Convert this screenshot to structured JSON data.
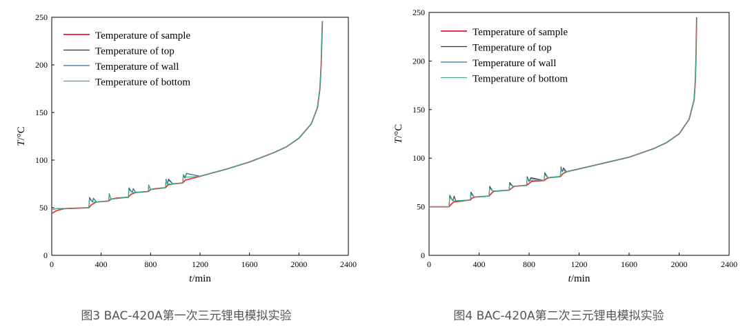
{
  "captions": [
    "图3 BAC-420A第一次三元锂电模拟实验",
    "图4 BAC-420A第二次三元锂电模拟实验"
  ],
  "legend_entries": [
    {
      "label": "Temperature of sample",
      "color": "#e0383d"
    },
    {
      "label": "Temperature of top",
      "color": "#333333"
    },
    {
      "label": "Temperature of wall",
      "color": "#2f6fa8"
    },
    {
      "label": "Temperature of bottom",
      "color": "#3dae7a"
    }
  ],
  "chart_data": [
    {
      "type": "line",
      "xlabel_italic": "t",
      "xlabel_unit": "/min",
      "ylabel_italic": "T",
      "ylabel_unit": "/°C",
      "xlim": [
        0,
        2400
      ],
      "ylim": [
        0,
        250
      ],
      "xticks": [
        "0",
        "400",
        "800",
        "1200",
        "1600",
        "2000",
        "2400"
      ],
      "yticks": [
        "0",
        "50",
        "100",
        "150",
        "200",
        "250"
      ],
      "grid": false,
      "legend": "top-left",
      "series": [
        {
          "name": "Temperature of sample",
          "x": [
            0,
            40,
            100,
            200,
            300,
            320,
            360,
            460,
            480,
            520,
            620,
            640,
            680,
            780,
            800,
            840,
            920,
            940,
            980,
            1060,
            1080,
            1200,
            1400,
            1600,
            1800,
            1900,
            2000,
            2100,
            2150,
            2170,
            2180,
            2190
          ],
          "y": [
            44,
            47,
            49,
            49.5,
            50,
            53,
            56,
            57,
            59,
            60,
            61,
            64,
            66,
            67,
            69,
            70,
            71,
            74,
            75,
            76,
            79,
            83,
            90,
            98,
            108,
            114,
            123,
            138,
            155,
            175,
            200,
            246
          ]
        },
        {
          "name": "Temperature of top",
          "x": [
            0,
            40,
            300,
            305,
            330,
            338,
            360,
            460,
            465,
            480,
            620,
            625,
            650,
            660,
            680,
            780,
            785,
            800,
            920,
            925,
            935,
            945,
            980,
            1060,
            1065,
            1078,
            1090,
            1200,
            1400,
            1600,
            1800,
            1900,
            2000,
            2100,
            2150,
            2170,
            2180,
            2190
          ],
          "y": [
            48,
            49,
            50,
            60,
            56,
            60,
            56,
            57,
            64,
            59,
            61,
            70,
            66,
            70,
            66,
            67,
            73,
            69,
            71,
            79,
            75,
            80,
            75,
            76,
            84,
            81,
            86,
            83,
            90,
            98,
            108,
            114,
            123,
            138,
            155,
            175,
            200,
            246
          ]
        },
        {
          "name": "Temperature of wall",
          "x": [
            0,
            40,
            300,
            305,
            330,
            338,
            360,
            460,
            465,
            480,
            620,
            625,
            650,
            660,
            680,
            780,
            785,
            800,
            920,
            925,
            935,
            945,
            980,
            1060,
            1065,
            1078,
            1090,
            1200,
            1400,
            1600,
            1800,
            1900,
            2000,
            2100,
            2150,
            2170,
            2180,
            2190
          ],
          "y": [
            48,
            49,
            50,
            61,
            56,
            60,
            56,
            57,
            65,
            59,
            61,
            71,
            66,
            70,
            66,
            67,
            74,
            69,
            71,
            80,
            75,
            79,
            75,
            76,
            85,
            81,
            86,
            83,
            90,
            98,
            108,
            114,
            123,
            138,
            155,
            175,
            200,
            246
          ]
        },
        {
          "name": "Temperature of bottom",
          "x": [
            0,
            40,
            300,
            305,
            330,
            360,
            460,
            465,
            480,
            620,
            625,
            650,
            680,
            780,
            785,
            800,
            920,
            925,
            945,
            980,
            1060,
            1065,
            1090,
            1200,
            1400,
            1600,
            1800,
            1900,
            2000,
            2100,
            2150,
            2170,
            2180,
            2190
          ],
          "y": [
            48,
            49,
            50,
            59,
            56,
            56,
            57,
            64,
            59,
            61,
            69,
            66,
            66,
            67,
            73,
            69,
            71,
            78,
            75,
            75,
            76,
            84,
            82,
            83,
            90,
            98,
            108,
            114,
            123,
            138,
            155,
            175,
            200,
            246
          ]
        }
      ]
    },
    {
      "type": "line",
      "xlabel_italic": "t",
      "xlabel_unit": "/min",
      "ylabel_italic": "T",
      "ylabel_unit": "/°C",
      "xlim": [
        0,
        2400
      ],
      "ylim": [
        0,
        250
      ],
      "xticks": [
        "0",
        "400",
        "800",
        "1200",
        "1600",
        "2000",
        "2400"
      ],
      "yticks": [
        "0",
        "50",
        "100",
        "150",
        "200",
        "250"
      ],
      "grid": false,
      "legend": "top-left",
      "series": [
        {
          "name": "Temperature of sample",
          "x": [
            0,
            160,
            180,
            200,
            330,
            345,
            370,
            480,
            500,
            520,
            640,
            660,
            680,
            780,
            800,
            820,
            920,
            940,
            960,
            1050,
            1070,
            1100,
            1200,
            1400,
            1600,
            1800,
            1900,
            2000,
            2080,
            2120,
            2130,
            2135,
            2140
          ],
          "y": [
            50,
            50,
            53,
            55,
            57,
            59,
            60,
            61,
            64,
            66,
            67,
            69,
            71,
            72,
            74,
            76,
            77,
            79,
            80,
            81,
            84,
            86,
            89,
            95,
            101,
            110,
            116,
            125,
            140,
            160,
            180,
            205,
            245
          ]
        },
        {
          "name": "Temperature of top",
          "x": [
            0,
            160,
            165,
            190,
            200,
            215,
            330,
            335,
            360,
            480,
            485,
            510,
            640,
            645,
            670,
            780,
            785,
            800,
            815,
            920,
            925,
            950,
            1050,
            1055,
            1065,
            1075,
            1100,
            1200,
            1400,
            1600,
            1800,
            1900,
            2000,
            2080,
            2120,
            2130,
            2135,
            2140
          ],
          "y": [
            50,
            50,
            61,
            56,
            61,
            56,
            57,
            65,
            60,
            61,
            71,
            66,
            67,
            75,
            71,
            72,
            81,
            76,
            80,
            77,
            85,
            80,
            81,
            91,
            86,
            90,
            86,
            89,
            95,
            101,
            110,
            116,
            125,
            140,
            160,
            180,
            205,
            245
          ]
        },
        {
          "name": "Temperature of wall",
          "x": [
            0,
            160,
            165,
            190,
            200,
            215,
            330,
            335,
            360,
            480,
            485,
            510,
            640,
            645,
            670,
            780,
            785,
            800,
            815,
            920,
            925,
            950,
            1050,
            1055,
            1065,
            1075,
            1100,
            1200,
            1400,
            1600,
            1800,
            1900,
            2000,
            2080,
            2120,
            2130,
            2135,
            2140
          ],
          "y": [
            50,
            50,
            62,
            56,
            60,
            56,
            57,
            64,
            60,
            61,
            70,
            66,
            67,
            74,
            71,
            72,
            80,
            76,
            79,
            77,
            84,
            80,
            81,
            90,
            86,
            89,
            86,
            89,
            95,
            101,
            110,
            116,
            125,
            140,
            160,
            180,
            205,
            245
          ]
        },
        {
          "name": "Temperature of bottom",
          "x": [
            0,
            160,
            165,
            190,
            330,
            335,
            360,
            480,
            485,
            510,
            640,
            645,
            670,
            780,
            785,
            815,
            920,
            925,
            950,
            1050,
            1055,
            1075,
            1100,
            1200,
            1400,
            1600,
            1800,
            1900,
            2000,
            2080,
            2120,
            2130,
            2135,
            2140
          ],
          "y": [
            50,
            50,
            60,
            56,
            57,
            63,
            60,
            61,
            69,
            66,
            67,
            73,
            71,
            72,
            79,
            77,
            77,
            83,
            80,
            81,
            89,
            87,
            86,
            89,
            95,
            101,
            110,
            116,
            125,
            140,
            160,
            180,
            205,
            245
          ]
        }
      ]
    }
  ]
}
